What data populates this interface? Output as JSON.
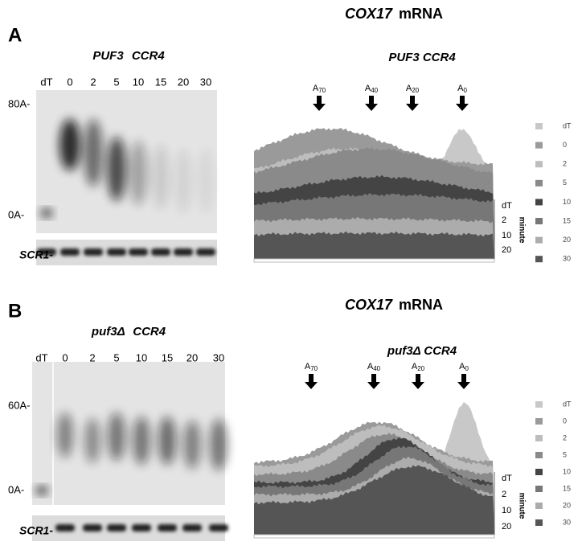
{
  "panels": [
    {
      "letter": "A",
      "genotype": "PUF3 CCR4",
      "lanes": [
        "dT",
        "0",
        "2",
        "5",
        "10",
        "15",
        "20",
        "30"
      ],
      "size_markers": [
        "80A-",
        "0A-"
      ],
      "loading_control": "SCR1-",
      "plot_title": {
        "gene": "COX17",
        "suffix": "mRNA"
      },
      "plot_subtitle": "PUF3 CCR4",
      "tail_markers": [
        {
          "base": "A",
          "sub": "70"
        },
        {
          "base": "A",
          "sub": "40"
        },
        {
          "base": "A",
          "sub": "20"
        },
        {
          "base": "A",
          "sub": "0"
        }
      ],
      "legend": [
        "dT",
        "0",
        "2",
        "5",
        "10",
        "15",
        "20",
        "30"
      ],
      "depth_labels": [
        "dT",
        "2",
        "10",
        "20"
      ],
      "depth_title": "minute"
    },
    {
      "letter": "B",
      "genotype": "puf3Δ CCR4",
      "lanes": [
        "dT",
        "0",
        "2",
        "5",
        "10",
        "15",
        "20",
        "30"
      ],
      "size_markers": [
        "60A-",
        "0A-"
      ],
      "loading_control": "SCR1-",
      "plot_title": {
        "gene": "COX17",
        "suffix": "mRNA"
      },
      "plot_subtitle": "puf3Δ CCR4",
      "tail_markers": [
        {
          "base": "A",
          "sub": "70"
        },
        {
          "base": "A",
          "sub": "40"
        },
        {
          "base": "A",
          "sub": "20"
        },
        {
          "base": "A",
          "sub": "0"
        }
      ],
      "legend": [
        "dT",
        "0",
        "2",
        "5",
        "10",
        "15",
        "20",
        "30"
      ],
      "depth_labels": [
        "dT",
        "2",
        "10",
        "20"
      ],
      "depth_title": "minute"
    }
  ]
}
